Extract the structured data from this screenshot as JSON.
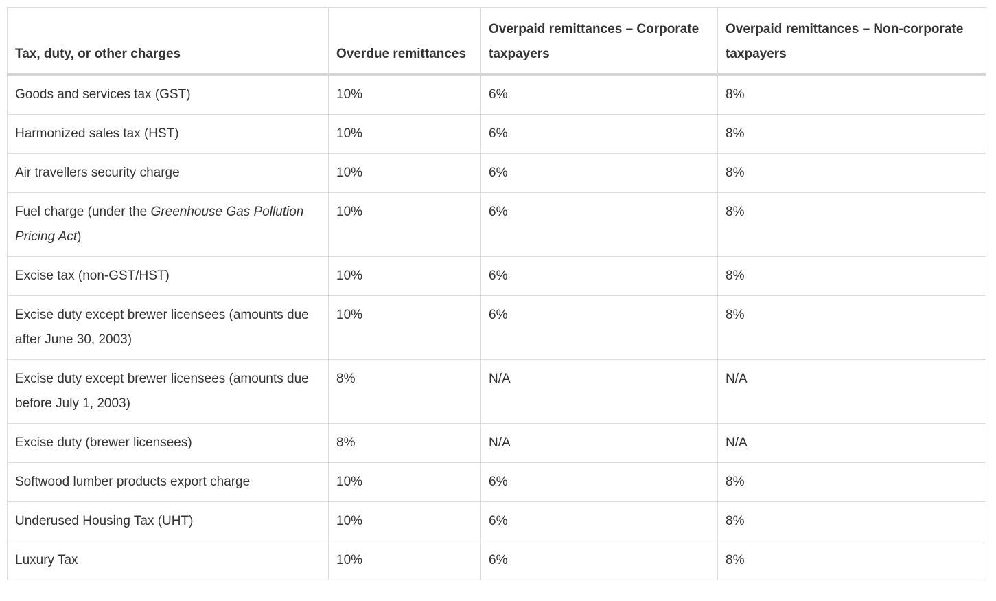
{
  "colors": {
    "text": "#333333",
    "border": "#dcdcdc",
    "header_rule": "#d5d5d5",
    "background": "#ffffff"
  },
  "table": {
    "columns": [
      "Tax, duty, or other charges",
      "Overdue remittances",
      "Overpaid remittances – Corporate taxpayers",
      "Overpaid remittances – Non-corporate taxpayers"
    ],
    "rows": [
      {
        "charge": [
          {
            "text": "Goods and services tax (GST)",
            "italic": false
          }
        ],
        "overdue": "10%",
        "overpaid_corporate": "6%",
        "overpaid_non_corporate": "8%"
      },
      {
        "charge": [
          {
            "text": "Harmonized sales tax (HST)",
            "italic": false
          }
        ],
        "overdue": "10%",
        "overpaid_corporate": "6%",
        "overpaid_non_corporate": "8%"
      },
      {
        "charge": [
          {
            "text": "Air travellers security charge",
            "italic": false
          }
        ],
        "overdue": "10%",
        "overpaid_corporate": "6%",
        "overpaid_non_corporate": "8%"
      },
      {
        "charge": [
          {
            "text": "Fuel charge (under the ",
            "italic": false
          },
          {
            "text": "Greenhouse Gas Pollution Pricing Act",
            "italic": true
          },
          {
            "text": ")",
            "italic": false
          }
        ],
        "overdue": "10%",
        "overpaid_corporate": "6%",
        "overpaid_non_corporate": "8%"
      },
      {
        "charge": [
          {
            "text": "Excise tax (non-GST/HST)",
            "italic": false
          }
        ],
        "overdue": "10%",
        "overpaid_corporate": "6%",
        "overpaid_non_corporate": "8%"
      },
      {
        "charge": [
          {
            "text": "Excise duty except brewer licensees (amounts due after June 30, 2003)",
            "italic": false
          }
        ],
        "overdue": "10%",
        "overpaid_corporate": "6%",
        "overpaid_non_corporate": "8%"
      },
      {
        "charge": [
          {
            "text": "Excise duty except brewer licensees (amounts due before July 1, 2003)",
            "italic": false
          }
        ],
        "overdue": "8%",
        "overpaid_corporate": "N/A",
        "overpaid_non_corporate": "N/A"
      },
      {
        "charge": [
          {
            "text": "Excise duty (brewer licensees)",
            "italic": false
          }
        ],
        "overdue": "8%",
        "overpaid_corporate": "N/A",
        "overpaid_non_corporate": "N/A"
      },
      {
        "charge": [
          {
            "text": "Softwood lumber products export charge",
            "italic": false
          }
        ],
        "overdue": "10%",
        "overpaid_corporate": "6%",
        "overpaid_non_corporate": "8%"
      },
      {
        "charge": [
          {
            "text": "Underused Housing Tax (UHT)",
            "italic": false
          }
        ],
        "overdue": "10%",
        "overpaid_corporate": "6%",
        "overpaid_non_corporate": "8%"
      },
      {
        "charge": [
          {
            "text": "Luxury Tax",
            "italic": false
          }
        ],
        "overdue": "10%",
        "overpaid_corporate": "6%",
        "overpaid_non_corporate": "8%"
      }
    ]
  }
}
